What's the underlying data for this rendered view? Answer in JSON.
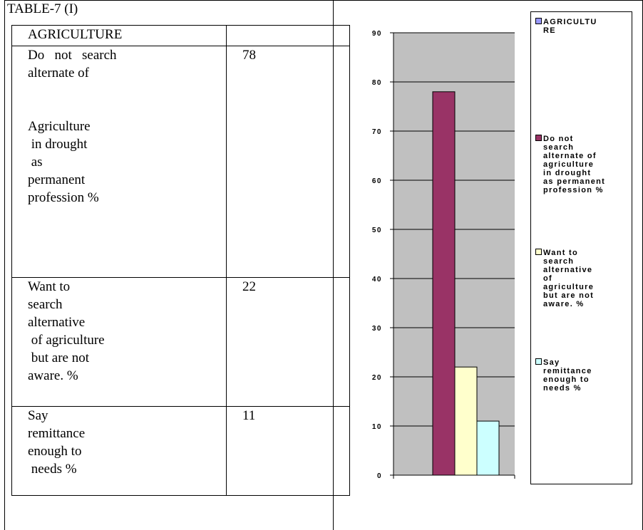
{
  "caption": "TABLE-7 (I)",
  "table": {
    "header": "AGRICULTURE",
    "rows": [
      {
        "label_lines": [
          "Do   not   search",
          "alternate of",
          "",
          "",
          "Agriculture",
          " in drought",
          " as",
          "permanent",
          "profession %"
        ],
        "value": "78"
      },
      {
        "label_lines": [
          "Want to",
          "search",
          "alternative",
          " of agriculture",
          " but are not",
          "aware. %"
        ],
        "value": "22"
      },
      {
        "label_lines": [
          "Say",
          "remittance",
          "enough to",
          " needs %"
        ],
        "value": "11"
      }
    ]
  },
  "chart_data": {
    "type": "bar",
    "ylim": [
      0,
      90
    ],
    "yticks": [
      "0",
      "10",
      "20",
      "30",
      "40",
      "50",
      "60",
      "70",
      "80",
      "90"
    ],
    "series": [
      {
        "name": "AGRICULTURE",
        "value": null,
        "color": "#9999FF"
      },
      {
        "name": "Do not search alternate of agriculture in drought as permanent profession %",
        "value": 78,
        "color": "#993366"
      },
      {
        "name": "Want to search alternative of agriculture but are not aware. %",
        "value": 22,
        "color": "#FFFFCC"
      },
      {
        "name": "Say remittance enough to needs %",
        "value": 11,
        "color": "#CCFFFF"
      }
    ],
    "plot_background": "#C0C0C0",
    "grid": true,
    "legend_position": "right",
    "legend_lines": [
      [
        "AGRICULTU",
        "RE"
      ],
      [
        "Do not",
        "search",
        "alternate of",
        "agriculture",
        "in drought",
        "as permanent",
        "profession %"
      ],
      [
        "Want to",
        "search",
        "alternative",
        "of",
        "agriculture",
        "but are not",
        "aware. %"
      ],
      [
        "Say",
        "remittance",
        "enough to",
        "needs %"
      ]
    ]
  }
}
